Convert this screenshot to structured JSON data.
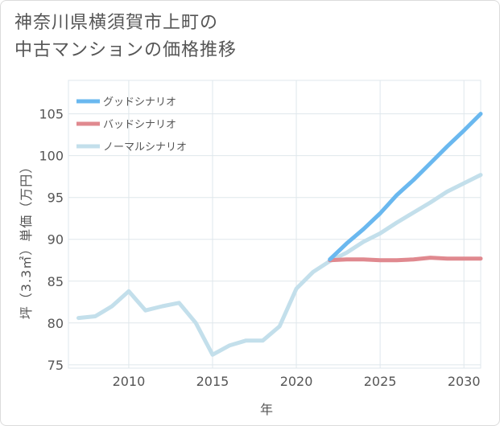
{
  "title_lines": [
    "神奈川県横須賀市上町の",
    "中古マンションの価格推移"
  ],
  "chart_data": {
    "type": "line",
    "xlabel": "年",
    "ylabel": "坪（3.3㎡）単価（万円）",
    "xlim": [
      2006.4,
      2031
    ],
    "ylim": [
      74.6,
      109
    ],
    "xticks": [
      2010,
      2015,
      2020,
      2025,
      2030
    ],
    "yticks": [
      75,
      80,
      85,
      90,
      95,
      100,
      105
    ],
    "grid": true,
    "legend_position": "top-left",
    "series": [
      {
        "name": "グッドシナリオ",
        "color": "#6ab8ef",
        "x": [
          2022,
          2023,
          2024,
          2025,
          2026,
          2027,
          2028,
          2029,
          2030,
          2031
        ],
        "y": [
          87.6,
          89.5,
          91.2,
          93.1,
          95.3,
          97.1,
          99.1,
          101.1,
          103.0,
          105.0
        ]
      },
      {
        "name": "バッドシナリオ",
        "color": "#e0898f",
        "x": [
          2022,
          2023,
          2024,
          2025,
          2026,
          2027,
          2028,
          2029,
          2030,
          2031
        ],
        "y": [
          87.5,
          87.6,
          87.6,
          87.5,
          87.5,
          87.6,
          87.8,
          87.7,
          87.7,
          87.7
        ]
      },
      {
        "name": "ノーマルシナリオ",
        "color": "#c3dfeb",
        "x": [
          2007,
          2008,
          2009,
          2010,
          2011,
          2012,
          2013,
          2014,
          2015,
          2016,
          2017,
          2018,
          2019,
          2020,
          2021,
          2022,
          2023,
          2024,
          2025,
          2026,
          2027,
          2028,
          2029,
          2030,
          2031
        ],
        "y": [
          80.6,
          80.8,
          82.0,
          83.8,
          81.5,
          82.0,
          82.4,
          80.0,
          76.2,
          77.3,
          77.9,
          77.9,
          79.6,
          84.1,
          86.1,
          87.4,
          88.4,
          89.7,
          90.7,
          92.0,
          93.2,
          94.4,
          95.7,
          96.7,
          97.7
        ]
      }
    ]
  }
}
